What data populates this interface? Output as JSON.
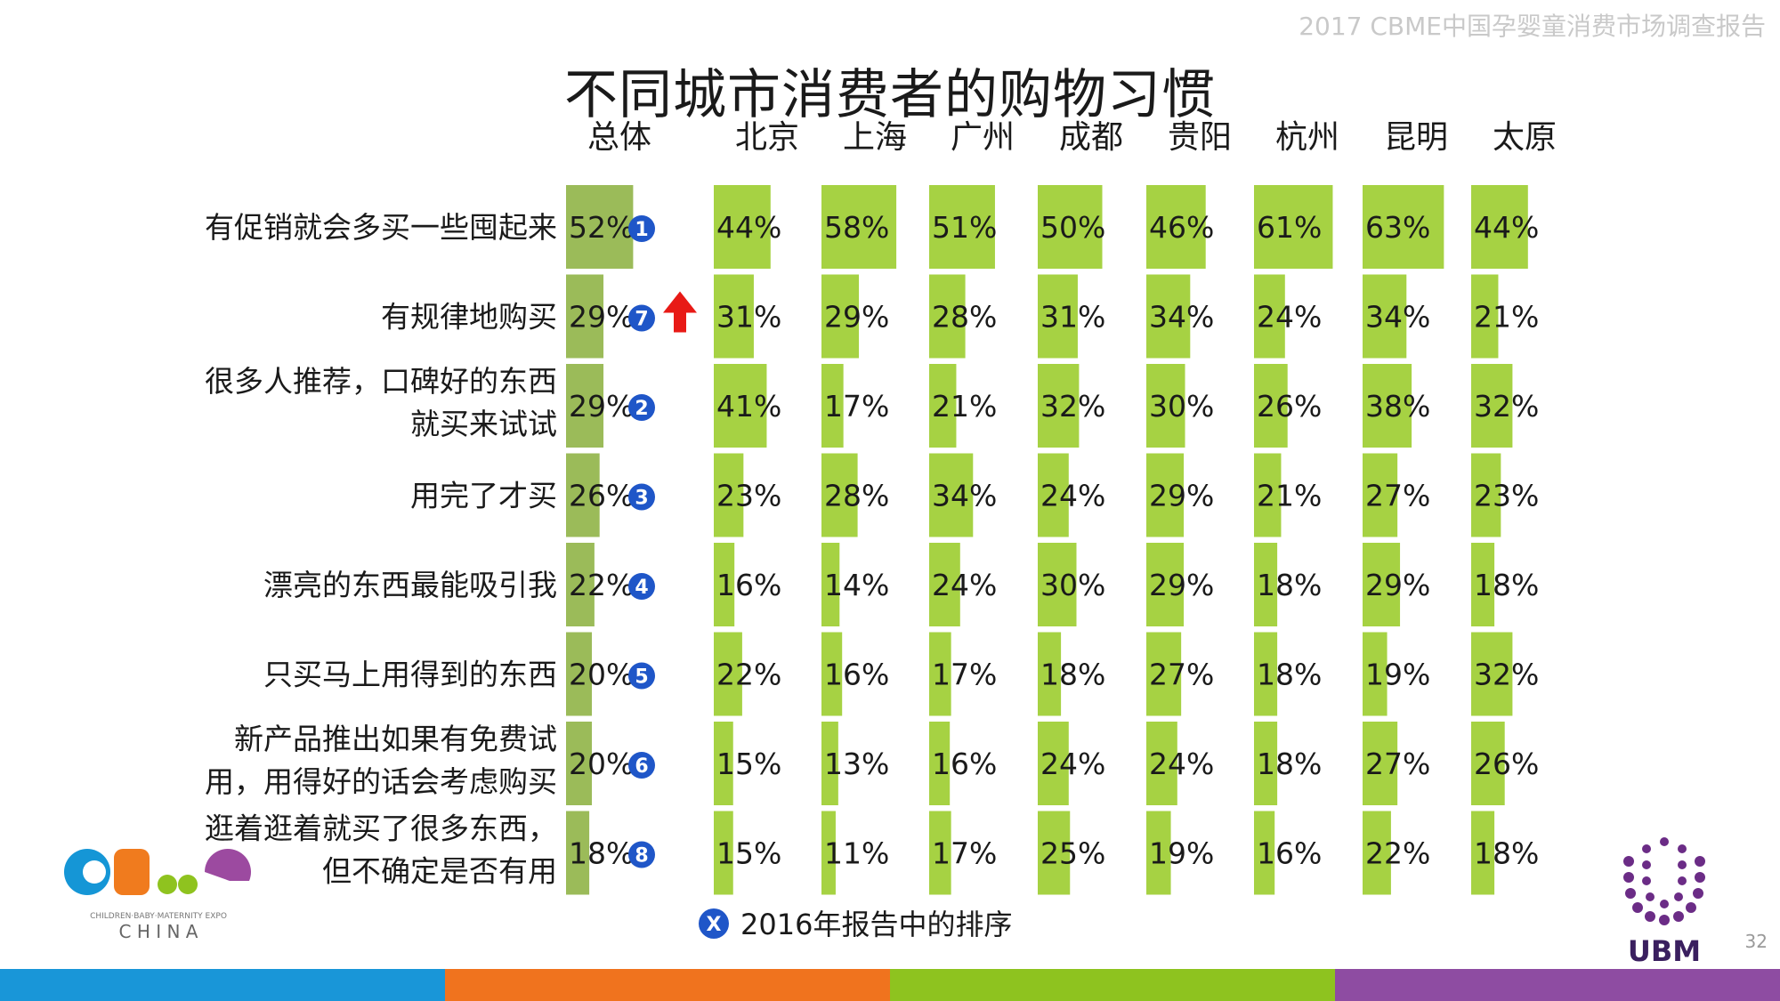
{
  "header": {
    "report_title": "2017 CBME中国孕婴童消费市场调查报告"
  },
  "page_number": "32",
  "colors": {
    "bar_total": "#9bbb59",
    "bar_city": "#a6d243",
    "rank_badge": "#1f56c8",
    "arrow_up": "#e81a16",
    "footer": [
      "#1996d8",
      "#f0731e",
      "#8ec31f",
      "#8e4ca2"
    ]
  },
  "chart_data": {
    "type": "table",
    "title": "不同城市消费者的购物习惯",
    "columns": [
      "总体",
      "北京",
      "上海",
      "广州",
      "成都",
      "贵阳",
      "杭州",
      "昆明",
      "太原"
    ],
    "rows": [
      {
        "label_lines": [
          "有促销就会多买一些囤起来"
        ],
        "values": [
          52,
          44,
          58,
          51,
          50,
          46,
          61,
          63,
          44
        ],
        "rank_2016": "1",
        "trend": ""
      },
      {
        "label_lines": [
          "有规律地购买"
        ],
        "values": [
          29,
          31,
          29,
          28,
          31,
          34,
          24,
          34,
          21
        ],
        "rank_2016": "7",
        "trend": "up"
      },
      {
        "label_lines": [
          "很多人推荐，口碑好的东西",
          "就买来试试"
        ],
        "values": [
          29,
          41,
          17,
          21,
          32,
          30,
          26,
          38,
          32
        ],
        "rank_2016": "2",
        "trend": ""
      },
      {
        "label_lines": [
          "用完了才买"
        ],
        "values": [
          26,
          23,
          28,
          34,
          24,
          29,
          21,
          27,
          23
        ],
        "rank_2016": "3",
        "trend": ""
      },
      {
        "label_lines": [
          "漂亮的东西最能吸引我"
        ],
        "values": [
          22,
          16,
          14,
          24,
          30,
          29,
          18,
          29,
          18
        ],
        "rank_2016": "4",
        "trend": ""
      },
      {
        "label_lines": [
          "只买马上用得到的东西"
        ],
        "values": [
          20,
          22,
          16,
          17,
          18,
          27,
          18,
          19,
          32
        ],
        "rank_2016": "5",
        "trend": ""
      },
      {
        "label_lines": [
          "新产品推出如果有免费试",
          "用，用得好的话会考虑购买"
        ],
        "values": [
          20,
          15,
          13,
          16,
          24,
          24,
          18,
          27,
          26
        ],
        "rank_2016": "6",
        "trend": ""
      },
      {
        "label_lines": [
          "逛着逛着就买了很多东西，",
          "但不确定是否有用"
        ],
        "values": [
          18,
          15,
          11,
          17,
          25,
          19,
          16,
          22,
          18
        ],
        "rank_2016": "8",
        "trend": ""
      }
    ],
    "value_suffix": "%",
    "legend": {
      "marker_text": "X",
      "text": "2016年报告中的排序"
    }
  },
  "logo": {
    "brand": "CBME",
    "subtitle": "CHILDREN·BABY·MATERNITY EXPO",
    "region": "C H I N A"
  },
  "ubm_logo": {
    "text": "UBM"
  }
}
